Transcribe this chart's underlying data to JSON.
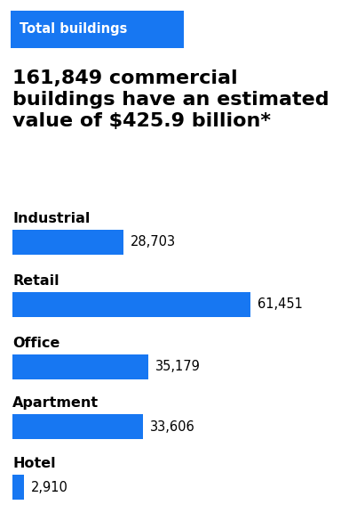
{
  "header_text": "Total buildings",
  "header_bg_color": "#1777f2",
  "header_text_color": "#ffffff",
  "subtitle": "161,849 commercial\nbuildings have an estimated\nvalue of $425.9 billion*",
  "categories": [
    "Industrial",
    "Retail",
    "Office",
    "Apartment",
    "Hotel"
  ],
  "values": [
    28703,
    61451,
    35179,
    33606,
    2910
  ],
  "labels": [
    "28,703",
    "61,451",
    "35,179",
    "33,606",
    "2,910"
  ],
  "bar_color": "#1777f2",
  "max_value": 61451,
  "bg_color": "#ffffff",
  "category_fontsize": 11.5,
  "label_fontsize": 10.5,
  "subtitle_fontsize": 16,
  "header_fontsize": 10.5
}
